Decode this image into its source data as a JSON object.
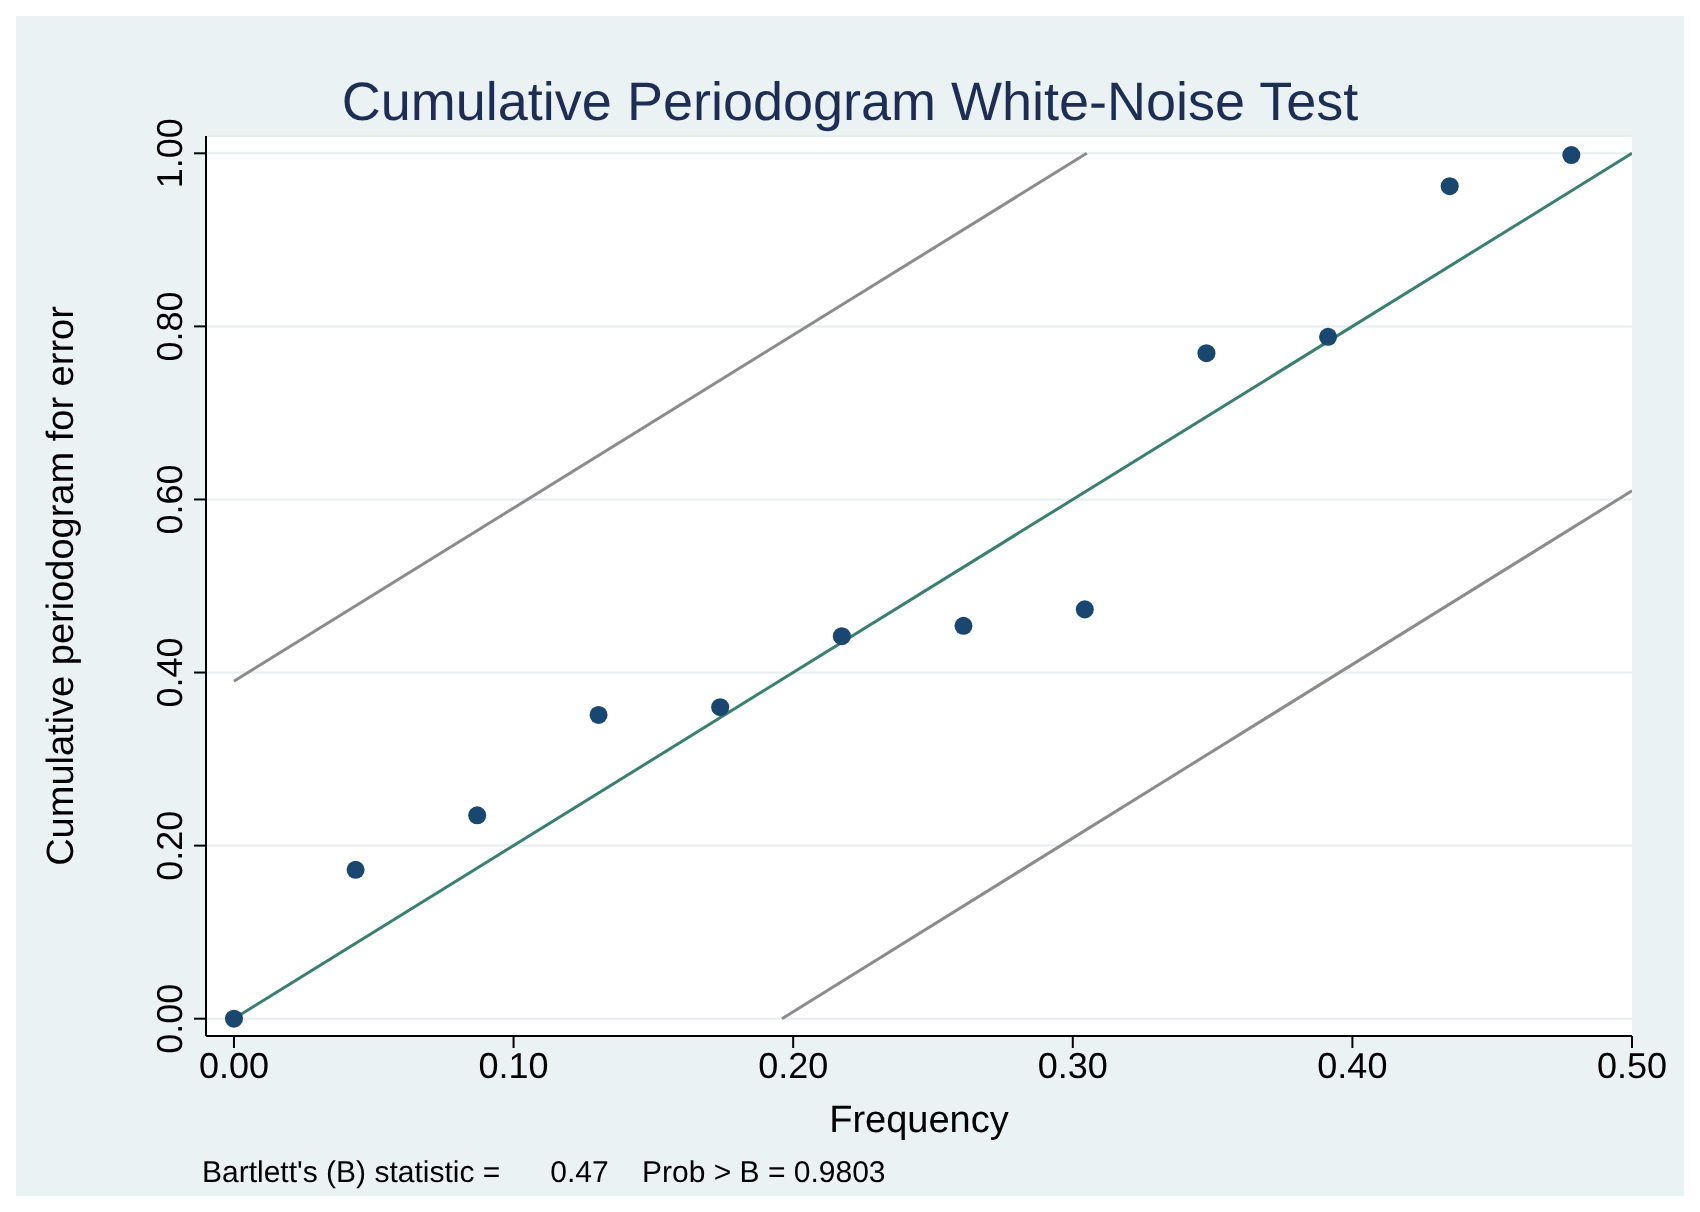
{
  "chart_data": {
    "type": "scatter",
    "title": "Cumulative Periodogram White-Noise Test",
    "xlabel": "Frequency",
    "ylabel": "Cumulative periodogram for error",
    "annotations": [
      "Bartlett's (B) statistic =      0.47    Prob > B = 0.9803"
    ],
    "series": [
      {
        "marker": "circle",
        "color": "#1a476f",
        "x": [
          0,
          0.0435,
          0.087,
          0.1304,
          0.1739,
          0.2174,
          0.2609,
          0.3043,
          0.3478,
          0.3913,
          0.4348,
          0.4783
        ],
        "values": [
          0,
          0.172,
          0.235,
          0.351,
          0.36,
          0.442,
          0.454,
          0.473,
          0.769,
          0.788,
          0.962,
          0.998
        ]
      },
      {
        "type": "line",
        "color": "#3a7f70",
        "x": [
          0,
          0.5
        ],
        "values": [
          0,
          1
        ]
      },
      {
        "type": "line",
        "color": "#8c8c8c",
        "x": [
          0,
          0.305
        ],
        "values": [
          0.39,
          1
        ]
      },
      {
        "type": "line",
        "color": "#8c8c8c",
        "x": [
          0.196,
          0.5
        ],
        "values": [
          0,
          0.61
        ]
      }
    ],
    "grid": "y",
    "xlim": [
      -0.01,
      0.5
    ],
    "xticks": [
      {
        "value": 0,
        "label": "0.00"
      },
      {
        "value": 0.1,
        "label": "0.10"
      },
      {
        "value": 0.2,
        "label": "0.20"
      },
      {
        "value": 0.3,
        "label": "0.30"
      },
      {
        "value": 0.4,
        "label": "0.40"
      },
      {
        "value": 0.5,
        "label": "0.50"
      }
    ],
    "ylim": [
      -0.02,
      1.02
    ],
    "yticks": [
      {
        "value": 0,
        "label": "0.00"
      },
      {
        "value": 0.2,
        "label": "0.20"
      },
      {
        "value": 0.4,
        "label": "0.40"
      },
      {
        "value": 0.6,
        "label": "0.60"
      },
      {
        "value": 0.8,
        "label": "0.80"
      },
      {
        "value": 1,
        "label": "1.00"
      }
    ]
  }
}
